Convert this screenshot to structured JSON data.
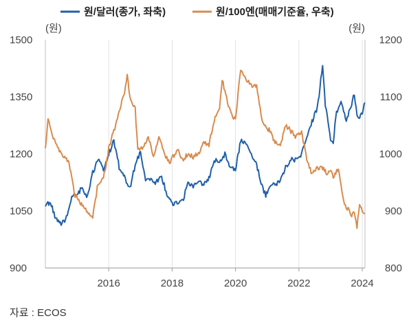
{
  "chart_data": {
    "type": "line",
    "x_axis": {
      "type": "date",
      "min": "2014-01-01",
      "max": "2024-02-01",
      "ticks": [
        "2016",
        "2018",
        "2020",
        "2022",
        "2024"
      ],
      "tick_dates": [
        "2016-01-01",
        "2018-01-01",
        "2020-01-01",
        "2022-01-01",
        "2024-01-01"
      ]
    },
    "y_left": {
      "unit": "(원)",
      "min": 900,
      "max": 1500,
      "ticks": [
        900,
        1050,
        1200,
        1350,
        1500
      ]
    },
    "y_right": {
      "unit": "(원)",
      "min": 800,
      "max": 1200,
      "ticks": [
        800,
        900,
        1000,
        1100,
        1200
      ]
    },
    "grid": "vertical",
    "legend_position": "top-center",
    "series": [
      {
        "name": "원/달러(종가, 좌축)",
        "axis": "left",
        "color": "#1f5fa8",
        "points": [
          [
            "2014-01-01",
            1065
          ],
          [
            "2014-03-01",
            1072
          ],
          [
            "2014-05-01",
            1030
          ],
          [
            "2014-07-01",
            1015
          ],
          [
            "2014-09-01",
            1032
          ],
          [
            "2014-11-01",
            1090
          ],
          [
            "2015-01-01",
            1095
          ],
          [
            "2015-03-01",
            1110
          ],
          [
            "2015-05-01",
            1085
          ],
          [
            "2015-07-01",
            1150
          ],
          [
            "2015-09-01",
            1185
          ],
          [
            "2015-11-01",
            1160
          ],
          [
            "2016-01-01",
            1200
          ],
          [
            "2016-03-01",
            1235
          ],
          [
            "2016-05-01",
            1165
          ],
          [
            "2016-07-01",
            1140
          ],
          [
            "2016-09-01",
            1110
          ],
          [
            "2016-11-01",
            1170
          ],
          [
            "2017-01-01",
            1205
          ],
          [
            "2017-03-01",
            1135
          ],
          [
            "2017-05-01",
            1130
          ],
          [
            "2017-07-01",
            1125
          ],
          [
            "2017-09-01",
            1140
          ],
          [
            "2017-11-01",
            1095
          ],
          [
            "2018-01-01",
            1068
          ],
          [
            "2018-03-01",
            1070
          ],
          [
            "2018-05-01",
            1075
          ],
          [
            "2018-07-01",
            1125
          ],
          [
            "2018-09-01",
            1115
          ],
          [
            "2018-11-01",
            1130
          ],
          [
            "2019-01-01",
            1120
          ],
          [
            "2019-03-01",
            1135
          ],
          [
            "2019-05-01",
            1185
          ],
          [
            "2019-07-01",
            1180
          ],
          [
            "2019-09-01",
            1200
          ],
          [
            "2019-11-01",
            1165
          ],
          [
            "2020-01-01",
            1160
          ],
          [
            "2020-03-01",
            1235
          ],
          [
            "2020-05-01",
            1225
          ],
          [
            "2020-07-01",
            1200
          ],
          [
            "2020-09-01",
            1170
          ],
          [
            "2020-11-01",
            1115
          ],
          [
            "2020-12-15",
            1090
          ],
          [
            "2021-02-01",
            1115
          ],
          [
            "2021-04-01",
            1120
          ],
          [
            "2021-06-01",
            1130
          ],
          [
            "2021-08-01",
            1165
          ],
          [
            "2021-10-01",
            1185
          ],
          [
            "2021-12-01",
            1185
          ],
          [
            "2022-02-01",
            1200
          ],
          [
            "2022-04-01",
            1240
          ],
          [
            "2022-06-01",
            1285
          ],
          [
            "2022-08-01",
            1320
          ],
          [
            "2022-10-01",
            1430
          ],
          [
            "2022-11-01",
            1330
          ],
          [
            "2023-01-01",
            1240
          ],
          [
            "2023-02-01",
            1230
          ],
          [
            "2023-03-01",
            1300
          ],
          [
            "2023-05-01",
            1335
          ],
          [
            "2023-07-01",
            1290
          ],
          [
            "2023-09-01",
            1330
          ],
          [
            "2023-10-01",
            1360
          ],
          [
            "2023-11-01",
            1300
          ],
          [
            "2023-12-01",
            1295
          ],
          [
            "2024-01-01",
            1310
          ],
          [
            "2024-02-01",
            1335
          ]
        ]
      },
      {
        "name": "원/100엔(매매기준율, 우축)",
        "axis": "right",
        "color": "#d88b4e",
        "points": [
          [
            "2014-01-01",
            1010
          ],
          [
            "2014-02-01",
            1060
          ],
          [
            "2014-04-01",
            1030
          ],
          [
            "2014-06-01",
            1010
          ],
          [
            "2014-08-01",
            995
          ],
          [
            "2014-10-01",
            985
          ],
          [
            "2014-12-01",
            930
          ],
          [
            "2015-02-01",
            915
          ],
          [
            "2015-04-01",
            905
          ],
          [
            "2015-06-01",
            895
          ],
          [
            "2015-07-01",
            890
          ],
          [
            "2015-09-01",
            950
          ],
          [
            "2015-11-01",
            955
          ],
          [
            "2016-01-01",
            1010
          ],
          [
            "2016-03-01",
            1040
          ],
          [
            "2016-05-01",
            1075
          ],
          [
            "2016-07-01",
            1110
          ],
          [
            "2016-08-01",
            1140
          ],
          [
            "2016-09-01",
            1100
          ],
          [
            "2016-11-01",
            1080
          ],
          [
            "2016-12-01",
            1010
          ],
          [
            "2017-02-01",
            1010
          ],
          [
            "2017-04-01",
            1030
          ],
          [
            "2017-06-01",
            995
          ],
          [
            "2017-08-01",
            1030
          ],
          [
            "2017-10-01",
            1000
          ],
          [
            "2017-12-01",
            985
          ],
          [
            "2018-02-01",
            1000
          ],
          [
            "2018-03-01",
            1010
          ],
          [
            "2018-05-01",
            990
          ],
          [
            "2018-07-01",
            1000
          ],
          [
            "2018-09-01",
            995
          ],
          [
            "2018-11-01",
            1000
          ],
          [
            "2019-01-01",
            1020
          ],
          [
            "2019-03-01",
            1015
          ],
          [
            "2019-05-01",
            1060
          ],
          [
            "2019-07-01",
            1080
          ],
          [
            "2019-08-01",
            1130
          ],
          [
            "2019-09-01",
            1110
          ],
          [
            "2019-11-01",
            1075
          ],
          [
            "2019-12-01",
            1065
          ],
          [
            "2020-01-01",
            1060
          ],
          [
            "2020-03-01",
            1150
          ],
          [
            "2020-05-01",
            1130
          ],
          [
            "2020-07-01",
            1120
          ],
          [
            "2020-09-01",
            1120
          ],
          [
            "2020-11-01",
            1060
          ],
          [
            "2020-12-01",
            1050
          ],
          [
            "2021-02-01",
            1040
          ],
          [
            "2021-04-01",
            1020
          ],
          [
            "2021-06-01",
            1015
          ],
          [
            "2021-08-01",
            1050
          ],
          [
            "2021-10-01",
            1040
          ],
          [
            "2021-12-01",
            1030
          ],
          [
            "2022-02-01",
            1040
          ],
          [
            "2022-04-01",
            990
          ],
          [
            "2022-06-01",
            965
          ],
          [
            "2022-08-01",
            975
          ],
          [
            "2022-10-01",
            975
          ],
          [
            "2022-12-01",
            965
          ],
          [
            "2023-01-01",
            975
          ],
          [
            "2023-02-01",
            960
          ],
          [
            "2023-04-01",
            975
          ],
          [
            "2023-06-01",
            915
          ],
          [
            "2023-08-01",
            900
          ],
          [
            "2023-09-01",
            890
          ],
          [
            "2023-10-01",
            900
          ],
          [
            "2023-11-01",
            870
          ],
          [
            "2023-12-01",
            915
          ],
          [
            "2024-01-01",
            900
          ],
          [
            "2024-02-01",
            895
          ]
        ]
      }
    ]
  },
  "source": "자료 : ECOS"
}
